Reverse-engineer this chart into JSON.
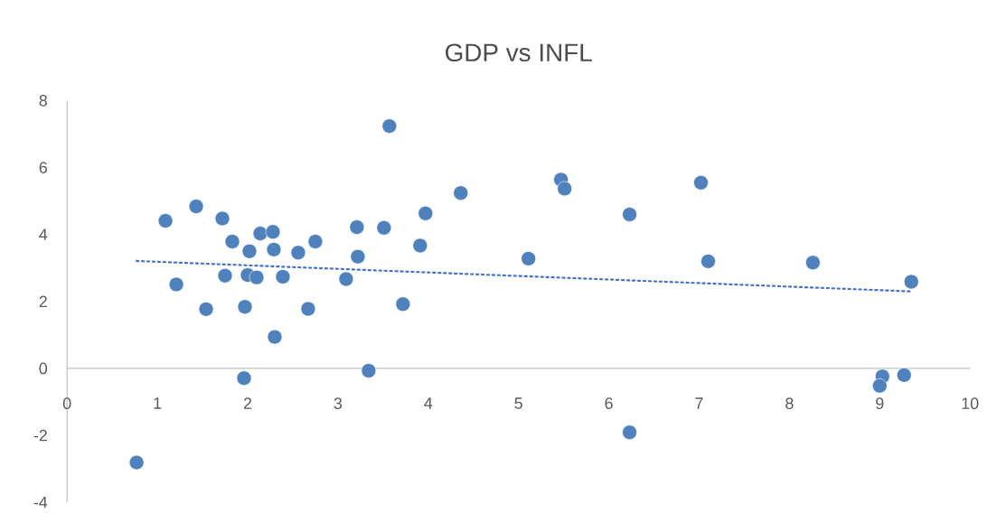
{
  "chart_data": {
    "type": "scatter",
    "title": "GDP vs INFL",
    "marker": "circle",
    "xlim": [
      0,
      10
    ],
    "ylim": [
      -4,
      8
    ],
    "xticks": [
      0,
      1,
      2,
      3,
      4,
      5,
      6,
      7,
      8,
      9,
      10
    ],
    "yticks": [
      -4,
      -2,
      0,
      2,
      4,
      6,
      8
    ],
    "series": [
      {
        "color": "#4f81bd",
        "x": [
          0.77,
          1.09,
          1.21,
          1.43,
          1.54,
          1.72,
          1.83,
          1.75,
          1.97,
          1.96,
          2.0,
          2.02,
          2.1,
          2.14,
          2.28,
          2.29,
          2.3,
          2.39,
          2.56,
          2.67,
          2.75,
          3.09,
          3.21,
          3.22,
          3.34,
          3.51,
          3.57,
          3.72,
          3.91,
          3.97,
          4.36,
          5.11,
          5.47,
          5.51,
          6.23,
          6.23,
          7.02,
          7.1,
          8.26,
          9.03,
          9.35,
          9.0,
          9.27
        ],
        "values": [
          -2.81,
          4.41,
          2.51,
          4.84,
          1.77,
          4.48,
          3.79,
          2.77,
          1.84,
          -0.29,
          2.79,
          3.5,
          2.72,
          4.03,
          4.08,
          3.55,
          0.94,
          2.74,
          3.46,
          1.78,
          3.79,
          2.67,
          4.22,
          3.34,
          -0.07,
          4.2,
          7.24,
          1.92,
          3.67,
          4.63,
          5.24,
          3.28,
          5.64,
          5.37,
          4.6,
          -1.91,
          5.55,
          3.2,
          3.16,
          -0.24,
          2.59,
          -0.52,
          -0.2
        ]
      },
      {
        "type": "line",
        "color": "#4472c4",
        "line_style": "dotted",
        "marker": "none",
        "x": [
          0.77,
          9.35
        ],
        "values": [
          3.21,
          2.3
        ]
      }
    ]
  }
}
